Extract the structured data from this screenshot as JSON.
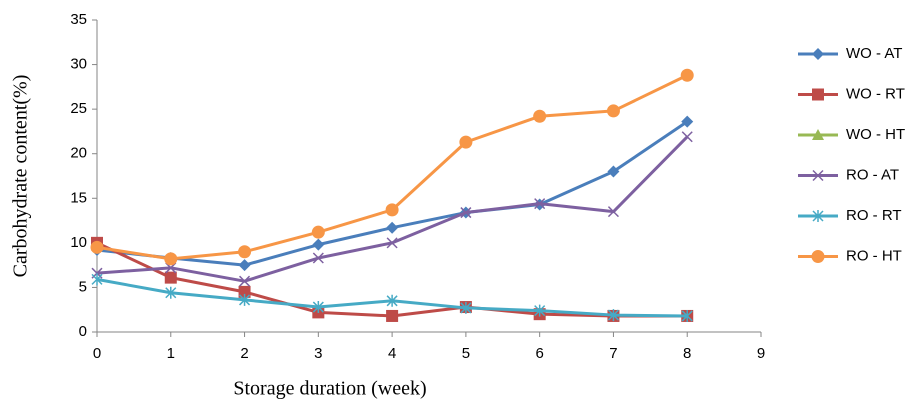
{
  "chart_data": {
    "type": "line",
    "xlabel": "Storage duration  (week)",
    "ylabel": "Carbohydrate content(%)",
    "x": [
      0,
      1,
      2,
      3,
      4,
      5,
      6,
      7,
      8
    ],
    "xlim": [
      0,
      9
    ],
    "xticks": [
      0,
      1,
      2,
      3,
      4,
      5,
      6,
      7,
      8,
      9
    ],
    "ylim": [
      0,
      35
    ],
    "yticks": [
      0,
      5,
      10,
      15,
      20,
      25,
      30,
      35
    ],
    "grid": false,
    "legend": "right",
    "series": [
      {
        "name": "WO - AT",
        "color": "#4a7ebb",
        "marker": "diamond",
        "values": [
          9.2,
          8.3,
          7.5,
          9.8,
          11.7,
          13.4,
          14.3,
          18.0,
          23.6
        ]
      },
      {
        "name": "WO - RT",
        "color": "#be4b48",
        "marker": "square",
        "values": [
          10.0,
          6.1,
          4.5,
          2.2,
          1.8,
          2.8,
          2.0,
          1.8,
          1.8
        ]
      },
      {
        "name": "WO - HT",
        "color": "#98b954",
        "marker": "triangle",
        "values": [
          null,
          null,
          null,
          null,
          null,
          null,
          null,
          null,
          null
        ]
      },
      {
        "name": "RO - AT",
        "color": "#7d60a0",
        "marker": "x",
        "values": [
          6.6,
          7.2,
          5.7,
          8.3,
          10.0,
          13.4,
          14.4,
          13.5,
          21.9
        ]
      },
      {
        "name": "RO - RT",
        "color": "#46aac5",
        "marker": "star",
        "values": [
          5.9,
          4.4,
          3.6,
          2.8,
          3.5,
          2.7,
          2.4,
          1.9,
          1.8
        ]
      },
      {
        "name": "RO - HT",
        "color": "#f79646",
        "marker": "circle",
        "values": [
          9.5,
          8.2,
          9.0,
          11.2,
          13.7,
          21.3,
          24.2,
          24.8,
          28.8
        ]
      }
    ]
  }
}
